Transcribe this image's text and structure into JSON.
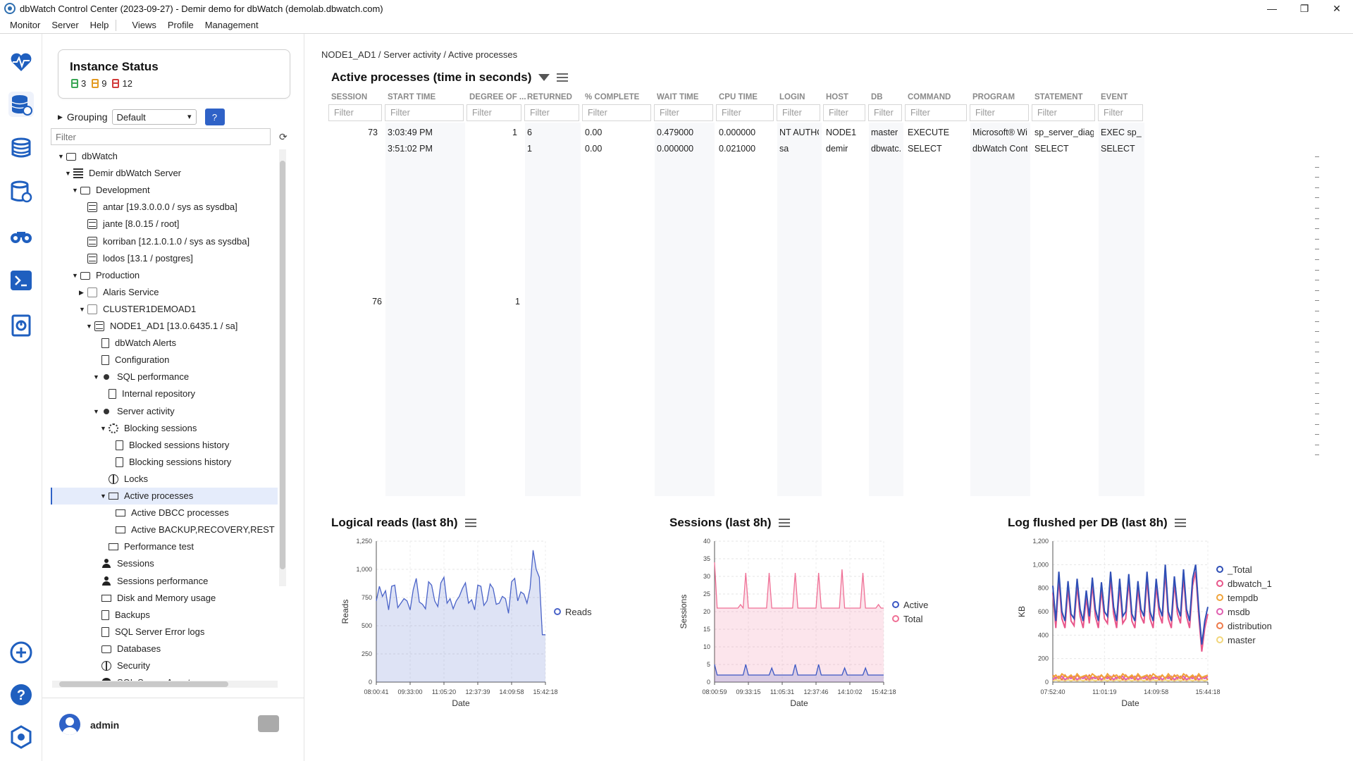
{
  "window": {
    "title": "dbWatch Control Center  (2023-09-27) - Demir demo for dbWatch (demolab.dbwatch.com)",
    "minimize": "—",
    "restore": "❐",
    "close": "✕"
  },
  "menu": [
    "Monitor",
    "Server",
    "Help",
    "Views",
    "Profile",
    "Management"
  ],
  "instance_status": {
    "title": "Instance Status",
    "green": "3",
    "orange": "9",
    "red": "12",
    "colors": {
      "green": "#3aa655",
      "orange": "#e39b22",
      "red": "#d23b3b"
    }
  },
  "grouping": {
    "label": "Grouping",
    "value": "Default",
    "help": "?"
  },
  "tree_filter": {
    "placeholder": "Filter"
  },
  "tree": [
    {
      "label": "dbWatch",
      "icon": "folder-icon",
      "level": 1,
      "tw": "▼"
    },
    {
      "label": "Demir dbWatch Server",
      "icon": "server-icon",
      "level": 2,
      "tw": "▼"
    },
    {
      "label": "Development",
      "icon": "folder-icon",
      "level": 3,
      "tw": "▼"
    },
    {
      "label": "antar [19.3.0.0.0 / sys as sysdba]",
      "icon": "database-icon",
      "level": 4,
      "tw": ""
    },
    {
      "label": "jante [8.0.15 / root]",
      "icon": "database-icon",
      "level": 4,
      "tw": ""
    },
    {
      "label": "korriban [12.1.0.1.0 / sys as sysdba]",
      "icon": "database-icon",
      "level": 4,
      "tw": ""
    },
    {
      "label": "lodos [13.1 / postgres]",
      "icon": "database-icon",
      "level": 4,
      "tw": ""
    },
    {
      "label": "Production",
      "icon": "folder-icon",
      "level": 3,
      "tw": "▼"
    },
    {
      "label": "Alaris Service",
      "icon": "cluster-icon",
      "level": 4,
      "tw": "▶"
    },
    {
      "label": "CLUSTER1DEMOAD1",
      "icon": "cluster-icon",
      "level": 4,
      "tw": "▼"
    },
    {
      "label": "NODE1_AD1 [13.0.6435.1 / sa]",
      "icon": "database-icon",
      "level": 5,
      "tw": "▼"
    },
    {
      "label": "dbWatch Alerts",
      "icon": "alerts-icon",
      "level": 6,
      "tw": ""
    },
    {
      "label": "Configuration",
      "icon": "configuration-icon",
      "level": 6,
      "tw": ""
    },
    {
      "label": "SQL performance",
      "icon": "dot-icon",
      "level": 6,
      "tw": "▼"
    },
    {
      "label": "Internal repository",
      "icon": "document-icon",
      "level": 7,
      "tw": ""
    },
    {
      "label": "Server activity",
      "icon": "dot-icon",
      "level": 6,
      "tw": "▼"
    },
    {
      "label": "Blocking sessions",
      "icon": "gear-icon",
      "level": 7,
      "tw": "▼"
    },
    {
      "label": "Blocked sessions history",
      "icon": "document-icon",
      "level": 8,
      "tw": ""
    },
    {
      "label": "Blocking sessions history",
      "icon": "document-icon",
      "level": 8,
      "tw": ""
    },
    {
      "label": "Locks",
      "icon": "globe-icon",
      "level": 7,
      "tw": ""
    },
    {
      "label": "Active processes",
      "icon": "terminal-icon",
      "level": 7,
      "tw": "▼",
      "selected": true
    },
    {
      "label": "Active DBCC processes",
      "icon": "terminal-icon",
      "level": 8,
      "tw": ""
    },
    {
      "label": "Active BACKUP,RECOVERY,REST",
      "icon": "terminal-icon",
      "level": 8,
      "tw": ""
    },
    {
      "label": "Performance test",
      "icon": "terminal-icon",
      "level": 7,
      "tw": ""
    },
    {
      "label": "Sessions",
      "icon": "person-icon",
      "level": 6,
      "tw": ""
    },
    {
      "label": "Sessions performance",
      "icon": "person-icon",
      "level": 6,
      "tw": ""
    },
    {
      "label": "Disk and Memory usage",
      "icon": "disk-icon",
      "level": 6,
      "tw": ""
    },
    {
      "label": "Backups",
      "icon": "backup-icon",
      "level": 6,
      "tw": ""
    },
    {
      "label": "SQL Server Error logs",
      "icon": "document-icon",
      "level": 6,
      "tw": ""
    },
    {
      "label": "Databases",
      "icon": "folder-icon",
      "level": 6,
      "tw": ""
    },
    {
      "label": "Security",
      "icon": "globe-icon",
      "level": 6,
      "tw": ""
    },
    {
      "label": "SQL Server Agent",
      "icon": "agent-icon",
      "level": 6,
      "tw": ""
    }
  ],
  "user": {
    "name": "admin"
  },
  "breadcrumb": "NODE1_AD1 / Server activity / Active processes",
  "active_processes": {
    "title": "Active processes (time in seconds)",
    "filter_placeholder": "Filter",
    "columns": [
      "SESSION",
      "START TIME",
      "DEGREE OF ...",
      "RETURNED",
      "% COMPLETE",
      "WAIT TIME",
      "CPU TIME",
      "LOGIN",
      "HOST",
      "DB",
      "COMMAND",
      "PROGRAM",
      "STATEMENT",
      "EVENT"
    ],
    "rows": [
      [
        "73",
        "3:03:49 PM",
        "1",
        "6",
        "0.00",
        "0.479000",
        "0.000000",
        "NT AUTHO...",
        "NODE1",
        "master",
        "EXECUTE",
        "Microsoft® Wi...",
        "sp_server_diagn...",
        "EXEC sp_s..."
      ],
      [
        "",
        "3:51:02 PM",
        "",
        "1",
        "0.00",
        "0.000000",
        "0.021000",
        "sa",
        "demir",
        "dbwatc...",
        "SELECT",
        "dbWatch Cont...",
        "SELECT",
        "SELECT"
      ]
    ],
    "group_values": {
      "session": "76",
      "degree": "1"
    }
  },
  "chart_data": [
    {
      "type": "area",
      "title": "Logical reads (last 8h)",
      "xlabel": "Date",
      "ylabel": "Reads",
      "ylim": [
        0,
        1250
      ],
      "yticks": [
        "0",
        "250",
        "500",
        "750",
        "1,000",
        "1,250"
      ],
      "xticks": [
        "08:00:41",
        "09:33:00",
        "11:05:20",
        "12:37:39",
        "14:09:58",
        "15:42:18"
      ],
      "series": [
        {
          "name": "Reads",
          "color": "#4a63c8",
          "values": [
            720,
            850,
            760,
            810,
            640,
            850,
            860,
            660,
            700,
            740,
            720,
            640,
            820,
            920,
            710,
            690,
            650,
            890,
            860,
            720,
            670,
            880,
            930,
            700,
            740,
            650,
            720,
            760,
            830,
            880,
            700,
            730,
            640,
            860,
            850,
            680,
            720,
            870,
            830,
            690,
            700,
            760,
            740,
            610,
            890,
            920,
            720,
            800,
            780,
            700,
            830,
            1170,
            1000,
            930,
            420,
            420
          ]
        }
      ],
      "legend": "right"
    },
    {
      "type": "area",
      "title": "Sessions (last 8h)",
      "xlabel": "Date",
      "ylabel": "Sessions",
      "ylim": [
        0,
        40
      ],
      "yticks": [
        "0",
        "5",
        "10",
        "15",
        "20",
        "25",
        "30",
        "35",
        "40"
      ],
      "xticks": [
        "08:00:59",
        "09:33:15",
        "11:05:31",
        "12:37:46",
        "14:10:02",
        "15:42:18"
      ],
      "series": [
        {
          "name": "Active",
          "color": "#3b57c4",
          "values": [
            5,
            2,
            2,
            2,
            2,
            2,
            2,
            2,
            2,
            2,
            2,
            2,
            5,
            2,
            2,
            2,
            2,
            2,
            2,
            2,
            2,
            2,
            4,
            2,
            2,
            2,
            2,
            2,
            2,
            2,
            2,
            5,
            2,
            2,
            2,
            2,
            2,
            2,
            2,
            2,
            5,
            2,
            2,
            2,
            2,
            2,
            2,
            2,
            2,
            2,
            4,
            2,
            2,
            2,
            2,
            2,
            2,
            2,
            4,
            2,
            2,
            2,
            2,
            2,
            2,
            2
          ]
        },
        {
          "name": "Total",
          "color": "#ef6f95",
          "values": [
            34,
            21,
            21,
            21,
            21,
            21,
            21,
            21,
            21,
            21,
            22,
            21,
            31,
            21,
            21,
            21,
            21,
            21,
            21,
            21,
            21,
            31,
            21,
            21,
            21,
            21,
            21,
            21,
            21,
            21,
            21,
            31,
            21,
            21,
            21,
            21,
            21,
            21,
            21,
            21,
            31,
            21,
            21,
            21,
            21,
            21,
            21,
            21,
            21,
            32,
            21,
            21,
            21,
            21,
            21,
            21,
            21,
            31,
            21,
            21,
            21,
            21,
            21,
            22,
            21,
            21
          ]
        }
      ],
      "legend": "right"
    },
    {
      "type": "line",
      "title": "Log flushed per DB (last 8h)",
      "xlabel": "Date",
      "ylabel": "KB",
      "ylim": [
        0,
        1200
      ],
      "yticks": [
        "0",
        "200",
        "400",
        "600",
        "800",
        "1,000",
        "1,200"
      ],
      "xticks": [
        "07:52:40",
        "11:01:19",
        "14:09:58",
        "15:44:18"
      ],
      "series": [
        {
          "name": "_Total",
          "color": "#2f4fb6",
          "values": [
            820,
            520,
            940,
            600,
            520,
            860,
            580,
            540,
            880,
            620,
            520,
            780,
            560,
            890,
            620,
            520,
            850,
            600,
            560,
            940,
            640,
            520,
            880,
            560,
            600,
            920,
            580,
            520,
            860,
            620,
            560,
            940,
            600,
            520,
            880,
            640,
            560,
            1000,
            600,
            520,
            900,
            640,
            560,
            960,
            620,
            520,
            880,
            1000,
            620,
            320,
            520,
            640
          ]
        },
        {
          "name": "dbwatch_1",
          "color": "#e8568a",
          "values": [
            760,
            460,
            880,
            540,
            460,
            800,
            520,
            480,
            820,
            560,
            460,
            720,
            500,
            830,
            560,
            460,
            790,
            540,
            500,
            880,
            580,
            460,
            820,
            500,
            540,
            860,
            520,
            460,
            800,
            560,
            500,
            880,
            540,
            460,
            820,
            580,
            500,
            940,
            540,
            460,
            840,
            580,
            500,
            900,
            560,
            460,
            820,
            940,
            560,
            260,
            460,
            580
          ]
        },
        {
          "name": "tempdb",
          "color": "#f0a43b",
          "values": [
            40,
            60,
            30,
            70,
            50,
            40,
            60,
            30,
            70,
            40,
            50,
            60,
            30,
            70,
            50,
            40,
            60,
            30,
            70,
            40,
            50,
            60,
            30,
            70,
            50,
            40,
            60,
            30,
            70,
            40,
            50,
            60,
            30,
            70,
            50,
            40,
            60,
            30,
            70,
            40,
            50,
            60,
            30,
            70,
            50,
            40,
            60,
            30,
            70,
            40,
            50,
            60
          ]
        },
        {
          "name": "msdb",
          "color": "#e05fb0",
          "values": [
            20,
            40,
            30,
            50,
            20,
            40,
            30,
            50,
            20,
            40,
            30,
            50,
            20,
            40,
            30,
            50,
            20,
            40,
            30,
            50,
            20,
            40,
            30,
            50,
            20,
            40,
            30,
            50,
            20,
            40,
            30,
            50,
            20,
            40,
            30,
            50,
            20,
            40,
            30,
            50,
            20,
            40,
            30,
            50,
            20,
            40,
            30,
            50,
            20,
            40,
            30,
            50
          ]
        },
        {
          "name": "distribution",
          "color": "#ee7a4a",
          "values": [
            60,
            30,
            50,
            20,
            60,
            30,
            50,
            20,
            60,
            30,
            50,
            20,
            60,
            30,
            50,
            20,
            60,
            30,
            50,
            20,
            60,
            30,
            50,
            20,
            60,
            30,
            50,
            20,
            60,
            30,
            50,
            20,
            60,
            30,
            50,
            20,
            60,
            30,
            50,
            20,
            60,
            30,
            50,
            20,
            60,
            30,
            50,
            20,
            60,
            30,
            50,
            20
          ]
        },
        {
          "name": "master",
          "color": "#f2d67a",
          "values": [
            10,
            20,
            10,
            20,
            10,
            20,
            10,
            20,
            10,
            20,
            10,
            20,
            10,
            20,
            10,
            20,
            10,
            20,
            10,
            20,
            10,
            20,
            10,
            20,
            10,
            20,
            10,
            20,
            10,
            20,
            10,
            20,
            10,
            20,
            10,
            20,
            10,
            20,
            10,
            20,
            10,
            20,
            10,
            20,
            10,
            20,
            10,
            20,
            10,
            20,
            10,
            20
          ]
        }
      ],
      "legend": "right"
    }
  ]
}
